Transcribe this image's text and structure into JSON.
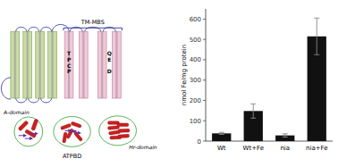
{
  "chart_data": {
    "type": "bar",
    "categories": [
      "Wt",
      "Wt+Fe",
      "nia",
      "nia+Fe"
    ],
    "values": [
      38,
      148,
      28,
      515
    ],
    "errors": [
      5,
      35,
      8,
      90
    ],
    "color": "#111111",
    "ylabel": "nmol Fe/mg protein",
    "ylim": [
      0,
      650
    ],
    "yticks": [
      0,
      100,
      200,
      300,
      400,
      500,
      600
    ],
    "grid": false,
    "annotations": [
      "T\nP\nC\nP",
      "Q\nE\n\nD",
      "TM-MBS",
      "A-domain",
      "ATPBD",
      "Hr-domain"
    ]
  }
}
